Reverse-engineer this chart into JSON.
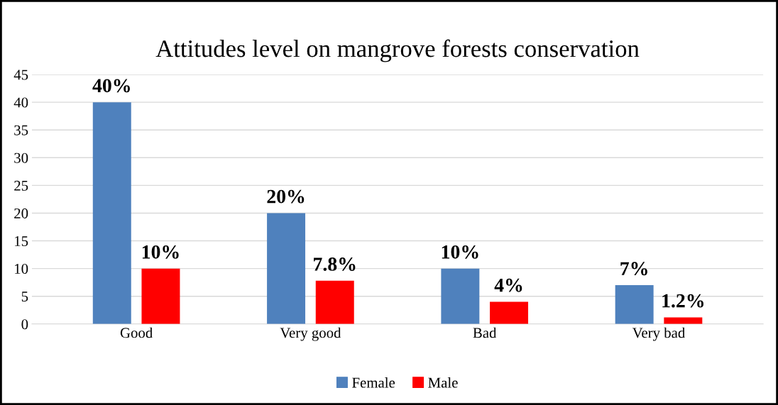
{
  "chart_data": {
    "type": "bar",
    "title": "Attitudes level on mangrove forests conservation",
    "categories": [
      "Good",
      "Very good",
      "Bad",
      "Very bad"
    ],
    "series": [
      {
        "name": "Female",
        "color": "#4f81bd",
        "values": [
          40,
          20,
          10,
          7
        ],
        "value_labels": [
          "40%",
          "20%",
          "10%",
          "7%"
        ]
      },
      {
        "name": "Male",
        "color": "#ff0000",
        "values": [
          10,
          7.8,
          4,
          1.2
        ],
        "value_labels": [
          "10%",
          "7.8%",
          "4%",
          "1.2%"
        ]
      }
    ],
    "ylim": [
      0,
      45
    ],
    "yticks": [
      0,
      5,
      10,
      15,
      20,
      25,
      30,
      35,
      40,
      45
    ],
    "grid": "y",
    "legend": "bottom"
  }
}
